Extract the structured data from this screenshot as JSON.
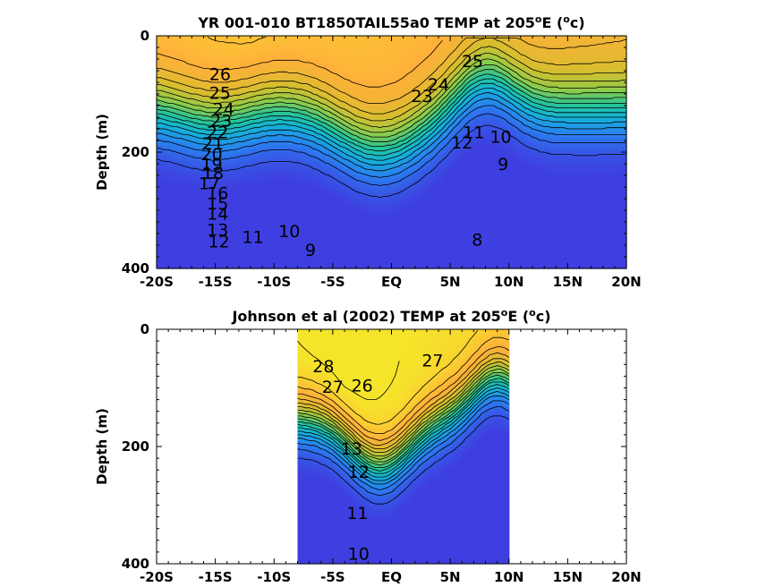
{
  "chart_data": [
    {
      "type": "heatmap",
      "subtype": "filled-contour",
      "title_parts": [
        "YR 001-010 BT1850TAIL55a0 TEMP at 205",
        "o",
        "E (",
        "o",
        "c)"
      ],
      "xlabel": "",
      "ylabel": "Depth (m)",
      "xlim": [
        -20,
        20
      ],
      "ylim": [
        0,
        400
      ],
      "y_reversed": true,
      "x_ticks": [
        -20,
        -15,
        -10,
        -5,
        0,
        5,
        10,
        15,
        20
      ],
      "x_tick_labels": [
        "-20S",
        "-15S",
        "-10S",
        "-5S",
        "EQ",
        "5N",
        "10N",
        "15N",
        "20N"
      ],
      "y_ticks": [
        0,
        200,
        400
      ],
      "y_tick_labels": [
        "0",
        "200",
        "400"
      ],
      "data_extent_x": [
        -20,
        20
      ],
      "colormap": [
        "#3e3fe0",
        "#2a7ff0",
        "#14b3d8",
        "#27c496",
        "#8ccc4a",
        "#d7be2e",
        "#ffb03a",
        "#f5e52a"
      ],
      "color_range": [
        8,
        28
      ],
      "contour_labels": [
        {
          "text": "26",
          "x": -14.6,
          "y": 68
        },
        {
          "text": "25",
          "x": -14.6,
          "y": 100
        },
        {
          "text": "24",
          "x": -14.3,
          "y": 128
        },
        {
          "text": "23",
          "x": -14.5,
          "y": 148
        },
        {
          "text": "22",
          "x": -14.8,
          "y": 168
        },
        {
          "text": "21",
          "x": -15.2,
          "y": 187
        },
        {
          "text": "20",
          "x": -15.3,
          "y": 205
        },
        {
          "text": "19",
          "x": -15.3,
          "y": 222
        },
        {
          "text": "18",
          "x": -15.2,
          "y": 238
        },
        {
          "text": "17",
          "x": -15.5,
          "y": 255
        },
        {
          "text": "16",
          "x": -14.8,
          "y": 272
        },
        {
          "text": "15",
          "x": -14.8,
          "y": 290
        },
        {
          "text": "14",
          "x": -14.8,
          "y": 308
        },
        {
          "text": "13",
          "x": -14.8,
          "y": 335
        },
        {
          "text": "12",
          "x": -14.7,
          "y": 355
        },
        {
          "text": "11",
          "x": -11.8,
          "y": 348
        },
        {
          "text": "10",
          "x": -8.7,
          "y": 338
        },
        {
          "text": "9",
          "x": -6.9,
          "y": 370
        },
        {
          "text": "25",
          "x": 6.9,
          "y": 45
        },
        {
          "text": "24",
          "x": 4.0,
          "y": 85
        },
        {
          "text": "23",
          "x": 2.6,
          "y": 105
        },
        {
          "text": "12",
          "x": 6.0,
          "y": 185
        },
        {
          "text": "11",
          "x": 7.0,
          "y": 168
        },
        {
          "text": "10",
          "x": 9.3,
          "y": 175
        },
        {
          "text": "9",
          "x": 9.5,
          "y": 222
        },
        {
          "text": "8",
          "x": 7.3,
          "y": 352
        }
      ]
    },
    {
      "type": "heatmap",
      "subtype": "filled-contour",
      "title_parts": [
        "Johnson et al (2002) TEMP at 205",
        "o",
        "E (",
        "o",
        "c)"
      ],
      "xlabel": "",
      "ylabel": "Depth (m)",
      "xlim": [
        -20,
        20
      ],
      "ylim": [
        0,
        400
      ],
      "y_reversed": true,
      "x_ticks": [
        -20,
        -15,
        -10,
        -5,
        0,
        5,
        10,
        15,
        20
      ],
      "x_tick_labels": [
        "-20S",
        "-15S",
        "-10S",
        "-5S",
        "EQ",
        "5N",
        "10N",
        "15N",
        "20N"
      ],
      "y_ticks": [
        0,
        200,
        400
      ],
      "y_tick_labels": [
        "0",
        "200",
        "400"
      ],
      "data_extent_x": [
        -8,
        10
      ],
      "colormap": [
        "#3e3fe0",
        "#2a7ff0",
        "#14b3d8",
        "#27c496",
        "#8ccc4a",
        "#d7be2e",
        "#ffb03a",
        "#f5e52a"
      ],
      "color_range": [
        8,
        28
      ],
      "contour_labels": [
        {
          "text": "28",
          "x": -5.8,
          "y": 65
        },
        {
          "text": "27",
          "x": -5.0,
          "y": 100
        },
        {
          "text": "26",
          "x": -2.5,
          "y": 98
        },
        {
          "text": "27",
          "x": 3.5,
          "y": 55
        },
        {
          "text": "13",
          "x": -3.4,
          "y": 205
        },
        {
          "text": "12",
          "x": -2.8,
          "y": 245
        },
        {
          "text": "11",
          "x": -2.9,
          "y": 315
        },
        {
          "text": "10",
          "x": -2.8,
          "y": 385
        }
      ]
    }
  ]
}
